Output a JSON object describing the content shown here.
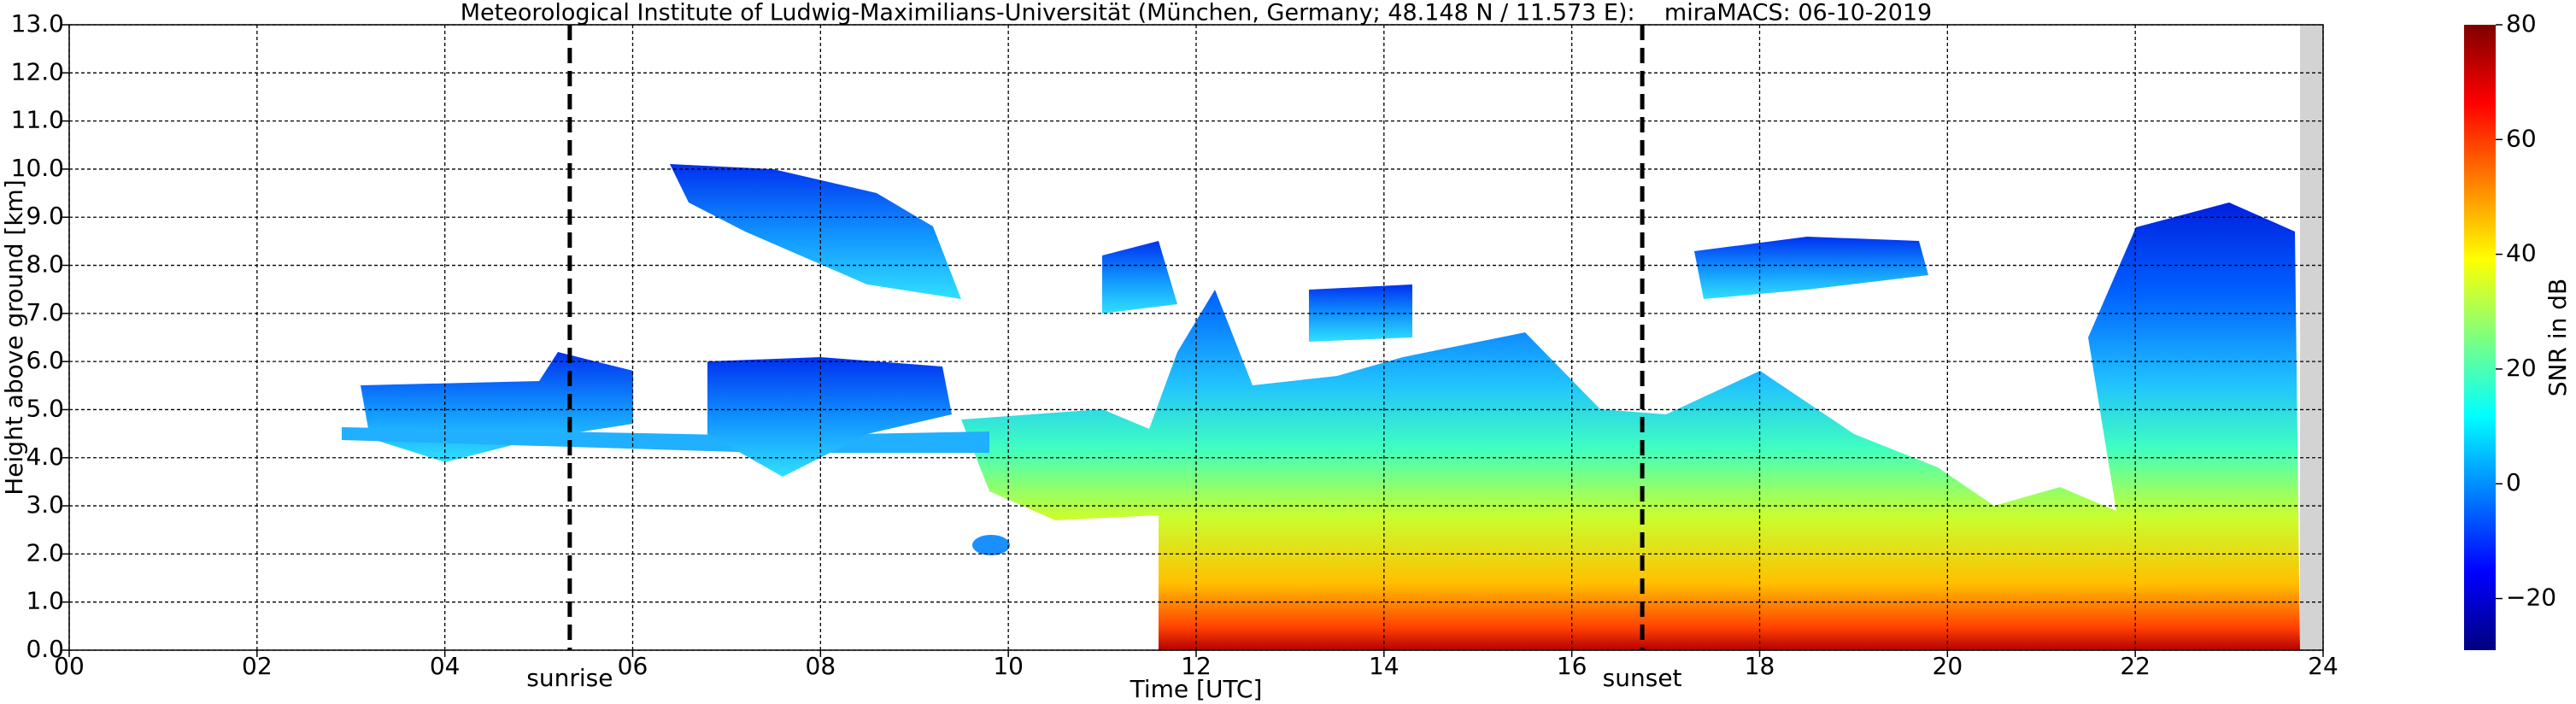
{
  "chart_data": {
    "type": "radar-timeheight",
    "title": "Meteorological Institute of Ludwig-Maximilians-Universität (München, Germany; 48.148 N / 11.573 E):    miraMACS: 06-10-2019",
    "x_label": "Time [UTC]",
    "y_label": "Height above ground [km]",
    "xlim": [
      0,
      24
    ],
    "xticks": [
      {
        "value": 0,
        "label": "00"
      },
      {
        "value": 2,
        "label": "02"
      },
      {
        "value": 4,
        "label": "04"
      },
      {
        "value": 6,
        "label": "06"
      },
      {
        "value": 8,
        "label": "08"
      },
      {
        "value": 10,
        "label": "10"
      },
      {
        "value": 12,
        "label": "12"
      },
      {
        "value": 14,
        "label": "14"
      },
      {
        "value": 16,
        "label": "16"
      },
      {
        "value": 18,
        "label": "18"
      },
      {
        "value": 20,
        "label": "20"
      },
      {
        "value": 22,
        "label": "22"
      },
      {
        "value": 24,
        "label": "24"
      }
    ],
    "ylim": [
      0,
      13
    ],
    "yticks": [
      {
        "value": 0,
        "label": "0.0"
      },
      {
        "value": 1,
        "label": "1.0"
      },
      {
        "value": 2,
        "label": "2.0"
      },
      {
        "value": 3,
        "label": "3.0"
      },
      {
        "value": 4,
        "label": "4.0"
      },
      {
        "value": 5,
        "label": "5.0"
      },
      {
        "value": 6,
        "label": "6.0"
      },
      {
        "value": 7,
        "label": "7.0"
      },
      {
        "value": 8,
        "label": "8.0"
      },
      {
        "value": 9,
        "label": "9.0"
      },
      {
        "value": 10,
        "label": "10.0"
      },
      {
        "value": 11,
        "label": "11.0"
      },
      {
        "value": 12,
        "label": "12.0"
      },
      {
        "value": 13,
        "label": "13.0"
      }
    ],
    "grid": true,
    "markers": [
      {
        "label": "sunrise",
        "x": 5.33
      },
      {
        "label": "sunset",
        "x": 16.75
      }
    ],
    "colorbar": {
      "label": "SNR in dB",
      "lim": [
        -29,
        80
      ],
      "ticks": [
        {
          "value": -20,
          "label": "−20"
        },
        0,
        20,
        40,
        60,
        80
      ],
      "colors": [
        "#00007f",
        "#0000ff",
        "#007fff",
        "#00ffff",
        "#7fff7f",
        "#ffff00",
        "#ff7f00",
        "#ff0000",
        "#7f0000"
      ]
    }
  }
}
